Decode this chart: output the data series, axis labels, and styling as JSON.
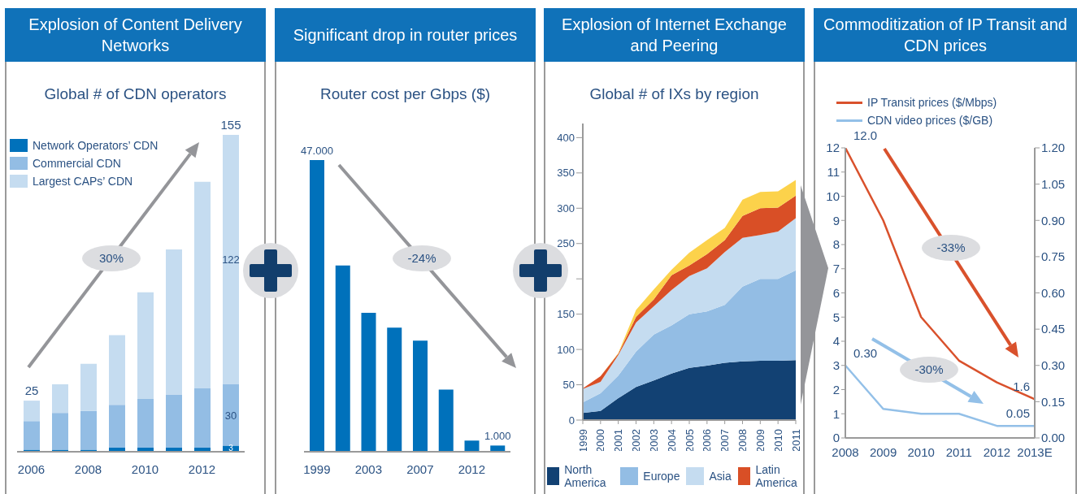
{
  "chart_data": [
    {
      "type": "bar",
      "title": "Explosion of Content Delivery Networks",
      "subtitle": "Global # of CDN operators",
      "categories": [
        "2006",
        null,
        "2008",
        null,
        "2010",
        null,
        "2012",
        null
      ],
      "stacked": true,
      "legend": "top left",
      "series": [
        {
          "name": "Network Operators’ CDN",
          "color": "#0071bb",
          "values": [
            1,
            1,
            1,
            2,
            2,
            2,
            2,
            3
          ],
          "value_labels": [
            null,
            null,
            null,
            null,
            null,
            null,
            null,
            "3"
          ]
        },
        {
          "name": "Commercial CDN",
          "color": "#93bde4",
          "values": [
            14,
            18,
            19,
            21,
            24,
            26,
            29,
            30
          ],
          "value_labels": [
            null,
            null,
            null,
            null,
            null,
            null,
            null,
            "30"
          ]
        },
        {
          "name": "Largest CAPs’ CDN",
          "color": "#c5dcf0",
          "values": [
            10,
            14,
            23,
            34,
            52,
            71,
            101,
            122
          ],
          "value_labels": [
            null,
            null,
            null,
            null,
            null,
            null,
            null,
            "122"
          ]
        }
      ],
      "totals": [
        "25",
        null,
        null,
        null,
        null,
        null,
        null,
        "155"
      ],
      "annotations": [
        "30%"
      ]
    },
    {
      "type": "bar",
      "title": "Significant drop in router prices",
      "subtitle": "Router cost per Gbps ($)",
      "categories": [
        "1999",
        null,
        "2003",
        null,
        "2007",
        null,
        "2012",
        null
      ],
      "values": [
        47,
        30,
        22.4,
        20,
        17.9,
        10,
        1.8,
        1
      ],
      "color": "#0071bb",
      "value_labels": [
        "47.000",
        null,
        null,
        null,
        null,
        null,
        null,
        "1.000"
      ],
      "annotations": [
        "-24%"
      ]
    },
    {
      "type": "area",
      "title": "Explosion of Internet Exchange and Peering",
      "subtitle": "Global # of IXs by region",
      "categories": [
        "1999",
        "2000",
        "2001",
        "2002",
        "2003",
        "2004",
        "2005",
        "2006",
        "2007",
        "2008",
        "2009",
        "2010",
        "2011"
      ],
      "stacked": true,
      "ylim": [
        0,
        420
      ],
      "yticks": [
        0,
        50,
        100,
        150,
        {
          "value": 200,
          "label": null
        },
        250,
        300,
        350,
        400
      ],
      "legend": "bottom",
      "series": [
        {
          "name": "North America",
          "color": "#124173",
          "values": [
            10,
            13,
            31,
            47,
            56,
            66,
            74,
            77,
            81,
            83,
            84,
            84,
            85
          ]
        },
        {
          "name": "Europe",
          "color": "#93bde4",
          "values": [
            15,
            25,
            32,
            50,
            65,
            68,
            76,
            77,
            82,
            106,
            116,
            116,
            127
          ]
        },
        {
          "name": "Asia",
          "color": "#c5dcf0",
          "values": [
            19,
            16,
            29,
            41,
            40,
            50,
            54,
            61,
            75,
            69,
            62,
            67,
            74
          ]
        },
        {
          "name": "Latin America",
          "color": "#d94f26",
          "values": [
            1,
            8,
            2,
            8,
            10,
            21,
            15,
            20,
            17,
            31,
            38,
            34,
            32
          ]
        },
        {
          "color": "#fcd24b",
          "values": [
            0,
            0,
            1,
            10,
            14,
            8,
            18,
            20,
            17,
            23,
            23,
            23,
            22
          ]
        }
      ]
    },
    {
      "type": "line",
      "title": "Commoditization of IP Transit and CDN prices",
      "categories": [
        "2008",
        "2009",
        "2010",
        "2011",
        "2012",
        "2013E"
      ],
      "ylim": [
        0,
        12
      ],
      "yticks": [
        0,
        1,
        2,
        3,
        4,
        5,
        6,
        7,
        8,
        9,
        10,
        11,
        12
      ],
      "y2lim": [
        0,
        1.2
      ],
      "y2ticks": [
        {
          "value": 0,
          "label": "0.00"
        },
        0.15,
        {
          "value": 0.3,
          "label": "0.30"
        },
        0.45,
        {
          "value": 0.6,
          "label": "0.60"
        },
        0.75,
        {
          "value": 0.9,
          "label": "0.90"
        },
        1.05,
        {
          "value": 1.2,
          "label": "1.20"
        }
      ],
      "legend": "top left",
      "series": [
        {
          "name": "IP Transit prices ($/Mbps)",
          "color": "#d9512c",
          "values": [
            12,
            9,
            5,
            3.2,
            2.3,
            1.6
          ],
          "value_labels": [
            "12.0",
            null,
            null,
            null,
            null,
            "1.6"
          ]
        },
        {
          "name": "CDN video prices ($/GB)",
          "color": "#93c0e8",
          "axis": "y2",
          "values": [
            0.3,
            0.12,
            0.1,
            0.1,
            0.05,
            0.05
          ],
          "value_labels": [
            "0.30",
            null,
            null,
            null,
            null,
            "0.05"
          ]
        }
      ],
      "annotations": [
        "-33%",
        "-30%"
      ]
    }
  ]
}
